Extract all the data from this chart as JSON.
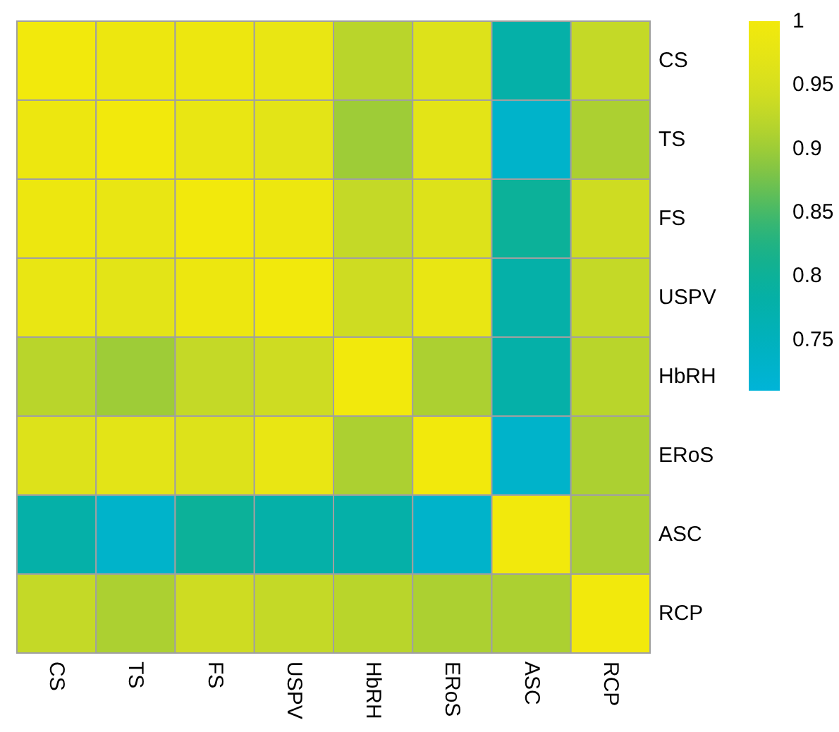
{
  "chart_data": {
    "type": "heatmap",
    "categories": [
      "CS",
      "TS",
      "FS",
      "USPV",
      "HbRH",
      "ERoS",
      "ASC",
      "RCP"
    ],
    "y_categories": [
      "CS",
      "TS",
      "FS",
      "USPV",
      "HbRH",
      "ERoS",
      "ASC",
      "RCP"
    ],
    "cells": [
      [
        1,
        0.99,
        0.99,
        0.98,
        0.92,
        0.96,
        0.78,
        0.93
      ],
      [
        0.99,
        1,
        0.98,
        0.97,
        0.9,
        0.97,
        0.73,
        0.91
      ],
      [
        0.99,
        0.98,
        1,
        0.99,
        0.93,
        0.96,
        0.8,
        0.94
      ],
      [
        0.98,
        0.97,
        0.99,
        1,
        0.94,
        0.98,
        0.78,
        0.93
      ],
      [
        0.92,
        0.9,
        0.93,
        0.94,
        1,
        0.91,
        0.78,
        0.92
      ],
      [
        0.96,
        0.97,
        0.96,
        0.98,
        0.91,
        1,
        0.73,
        0.91
      ],
      [
        0.78,
        0.73,
        0.8,
        0.78,
        0.78,
        0.73,
        1,
        0.91
      ],
      [
        0.93,
        0.91,
        0.94,
        0.93,
        0.92,
        0.91,
        0.91,
        1
      ]
    ],
    "clim": [
      0.71,
      1
    ],
    "cticks": [
      {
        "value": 0.75,
        "label": "0.75"
      },
      {
        "value": 0.8,
        "label": "0.8"
      },
      {
        "value": 0.85,
        "label": "0.85"
      },
      {
        "value": 0.9,
        "label": "0.9"
      },
      {
        "value": 0.95,
        "label": "0.95"
      },
      {
        "value": 1,
        "label": "1"
      }
    ]
  }
}
